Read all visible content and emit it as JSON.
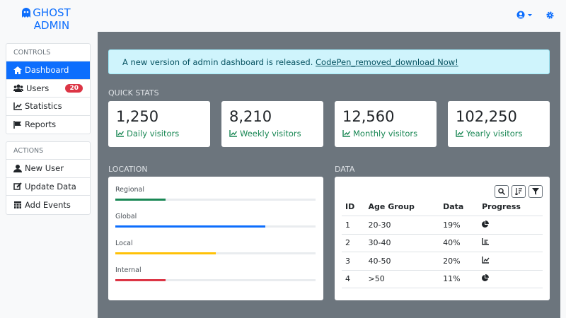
{
  "header": {
    "logo": "GHOST ADMIN"
  },
  "sidebar": {
    "controls": {
      "title": "CONTROLS",
      "items": [
        {
          "label": "Dashboard"
        },
        {
          "label": "Users",
          "badge": 20
        },
        {
          "label": "Statistics"
        },
        {
          "label": "Reports"
        }
      ]
    },
    "actions": {
      "title": "ACTIONS",
      "items": [
        {
          "label": "New User"
        },
        {
          "label": "Update Data"
        },
        {
          "label": "Add Events"
        }
      ]
    }
  },
  "alert": {
    "text": "A new version of admin dashboard is released.",
    "link": "CodePen_removed_download Now!"
  },
  "quick_stats": {
    "title": "QUICK STATS",
    "cards": [
      {
        "value": "1,250",
        "label": "Daily visitors"
      },
      {
        "value": "8,210",
        "label": "Weekly visitors"
      },
      {
        "value": "12,560",
        "label": "Monthly visitors"
      },
      {
        "value": "102,250",
        "label": "Yearly visitors"
      }
    ]
  },
  "location": {
    "title": "LOCATION",
    "bars": [
      {
        "label": "Regional",
        "value": 25,
        "color": "#198754"
      },
      {
        "label": "Global",
        "value": 75,
        "color": "#0d6efd"
      },
      {
        "label": "Local",
        "value": 50,
        "color": "#ffc107"
      },
      {
        "label": "Internal",
        "value": 25,
        "color": "#dc3545"
      }
    ]
  },
  "data": {
    "title": "DATA",
    "table": {
      "columns": [
        "ID",
        "Age Group",
        "Data",
        "Progress"
      ],
      "rows": [
        [
          1,
          "20-30",
          "19%"
        ],
        [
          2,
          "30-40",
          "40%"
        ],
        [
          3,
          "40-50",
          "20%"
        ],
        [
          4,
          ">50",
          "11%"
        ]
      ]
    }
  }
}
